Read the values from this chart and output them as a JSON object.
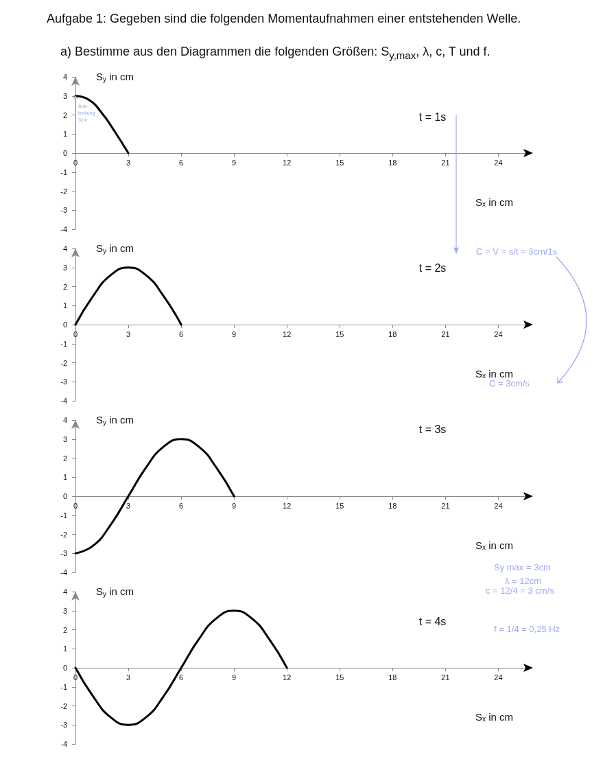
{
  "chart_data": [
    {
      "type": "line",
      "title": "t = 1s",
      "xlabel": "S$_{x}$ in cm",
      "ylabel": "S$_{y}$ in cm",
      "color": "#000000",
      "marker": "none",
      "x": [
        0,
        0.75,
        1.5,
        2.25,
        3
      ],
      "values": [
        3,
        2.8,
        2.1,
        1.1,
        0
      ],
      "xlim": [
        0,
        25.5
      ],
      "xticks": [
        0,
        3,
        6,
        9,
        12,
        15,
        18,
        21,
        24
      ],
      "ylim": [
        -4,
        4
      ],
      "yticks": [
        -4,
        -3,
        -2,
        -1,
        0,
        1,
        2,
        3,
        4
      ],
      "annotations": [
        "Aufgabe 1: Gegeben sind die folgenden Momentaufnahmen einer entstehenden Welle.",
        "a) Bestimme aus den Diagrammen die folgenden Größen: S$_{y,max}$, λ, c, T und f.",
        {
          "text": "Aus-\nlenkung\n3cm",
          "x": 0,
          "y": 3
        }
      ]
    },
    {
      "type": "line",
      "title": "t = 2s",
      "xlabel": "S$_{x}$ in cm",
      "ylabel": "S$_{y}$ in cm",
      "color": "#000000",
      "marker": "none",
      "x": [
        0,
        1,
        2,
        3,
        4,
        5,
        6
      ],
      "values": [
        0,
        1.5,
        2.6,
        3,
        2.6,
        1.5,
        0
      ],
      "xlim": [
        0,
        25.5
      ],
      "xticks": [
        0,
        3,
        6,
        9,
        12,
        15,
        18,
        21,
        24
      ],
      "ylim": [
        -4,
        4
      ],
      "yticks": [
        -4,
        -3,
        -2,
        -1,
        0,
        1,
        2,
        3,
        4
      ],
      "annotations": [
        "C = V = s/t = 3cm/1s",
        "C = 3cm/s"
      ]
    },
    {
      "type": "line",
      "title": "t = 3s",
      "xlabel": "S$_{x}$ in cm",
      "ylabel": "S$_{y}$ in cm",
      "color": "#000000",
      "marker": "none",
      "x": [
        0,
        1,
        2,
        3,
        4,
        5,
        6,
        7,
        8,
        9
      ],
      "values": [
        -3,
        -2.6,
        -1.5,
        0,
        1.5,
        2.6,
        3,
        2.6,
        1.5,
        0
      ],
      "xlim": [
        0,
        25.5
      ],
      "xticks": [
        0,
        3,
        6,
        9,
        12,
        15,
        18,
        21,
        24
      ],
      "ylim": [
        -4,
        4
      ],
      "yticks": [
        -4,
        -3,
        -2,
        -1,
        0,
        1,
        2,
        3,
        4
      ],
      "annotations": [
        "Sy max = 3cm",
        "λ = 12cm"
      ]
    },
    {
      "type": "line",
      "title": "t = 4s",
      "xlabel": "S$_{x}$ in cm",
      "ylabel": "S$_{y}$ in cm",
      "color": "#000000",
      "marker": "none",
      "x": [
        0,
        1,
        2,
        3,
        4,
        5,
        6,
        7,
        8,
        9,
        10,
        11,
        12
      ],
      "values": [
        0,
        -1.5,
        -2.6,
        -3,
        -2.6,
        -1.5,
        0,
        1.5,
        2.6,
        3,
        2.6,
        1.5,
        0
      ],
      "xlim": [
        0,
        25.5
      ],
      "xticks": [
        0,
        3,
        6,
        9,
        12,
        15,
        18,
        21,
        24
      ],
      "ylim": [
        -4,
        4
      ],
      "yticks": [
        -4,
        -3,
        -2,
        -1,
        0,
        1,
        2,
        3,
        4
      ],
      "annotations": [
        "c = 12/4 = 3 cm/s",
        "f = 1/4 = 0,25 Hz"
      ]
    }
  ]
}
